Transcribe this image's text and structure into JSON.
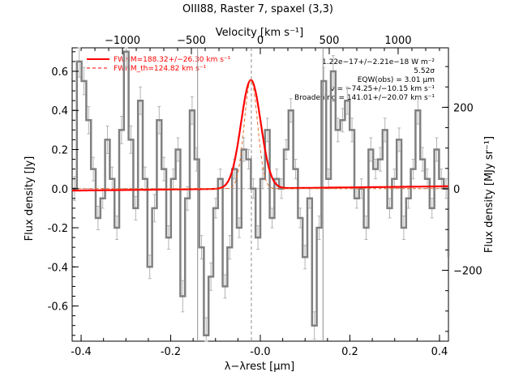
{
  "chart_data": {
    "type": "line",
    "title": "OIII88, Raster 7, spaxel (3,3)",
    "xlabel": "λ−λrest [μm]",
    "ylabel": "Flux density [Jy]",
    "top_xlabel": "Velocity [km s⁻¹]",
    "right_ylabel": "Flux density [MJy sr⁻¹]",
    "xlim": [
      -0.42,
      0.42
    ],
    "ylim": [
      -0.78,
      0.72
    ],
    "velocity_lim": [
      -1365,
      1365
    ],
    "right_lim": [
      -374,
      346
    ],
    "x_ticks": [
      -0.4,
      -0.2,
      0.0,
      0.2,
      0.4
    ],
    "x_tick_labels": [
      "-0.4",
      "-0.2",
      "-0.0",
      "0.2",
      "0.4"
    ],
    "y_ticks": [
      -0.6,
      -0.4,
      -0.2,
      0.0,
      0.2,
      0.4,
      0.6
    ],
    "y_tick_labels": [
      "-0.6",
      "-0.4",
      "-0.2",
      "0.0",
      "0.2",
      "0.4",
      "0.6"
    ],
    "top_ticks": [
      -1000,
      -500,
      0,
      500,
      1000
    ],
    "top_tick_labels": [
      "−1000",
      "−500",
      "0",
      "500",
      "1000"
    ],
    "right_ticks": [
      -200,
      0,
      200
    ],
    "right_tick_labels": [
      "−200",
      "0",
      "200"
    ],
    "vlines_solid": [
      -0.14,
      0.14
    ],
    "vline_dashed": -0.02,
    "legend": [
      {
        "label": "FWHM=188.32+/−26.30 km s⁻¹",
        "style": "solid",
        "color": "#ff0000"
      },
      {
        "label": "FWHM_th=124.82 km s⁻¹",
        "style": "dashed",
        "color": "#ff0000"
      }
    ],
    "annotations": [
      "1.22e−17+/−2.21e−18 W m⁻²",
      "5.52σ",
      "EQW(obs) = 3.01 μm",
      "v = −74.25+/−10.15 km s⁻¹",
      "Broadening = 141.01+/−20.07 km s⁻¹"
    ],
    "fit": {
      "center": -0.021,
      "sigma": 0.022,
      "amplitude": 0.555,
      "baseline_left": -0.01,
      "baseline_right": 0.012
    },
    "fit_th": {
      "center": -0.021,
      "sigma": 0.0148,
      "amplitude": 0.555
    },
    "spectrum": {
      "x0": -0.42,
      "step": 0.0105,
      "color": "#808080",
      "errors_color": "#b4b4b4",
      "y": [
        0.0,
        0.65,
        0.55,
        0.35,
        0.1,
        -0.15,
        -0.05,
        0.25,
        0.05,
        -0.2,
        0.3,
        0.7,
        0.25,
        -0.1,
        0.45,
        0.05,
        -0.4,
        -0.1,
        0.35,
        0.1,
        -0.25,
        0.05,
        0.2,
        -0.55,
        -0.05,
        0.4,
        0.15,
        -0.3,
        -0.75,
        -0.45,
        -0.1,
        0.05,
        -0.5,
        -0.3,
        0.1,
        -0.2,
        0.2,
        0.15,
        0.0,
        -0.25,
        0.05,
        0.3,
        -0.15,
        0.05,
        0.0,
        0.2,
        0.4,
        0.1,
        -0.15,
        -0.35,
        -0.05,
        -0.7,
        -0.2,
        0.55,
        0.05,
        0.6,
        0.3,
        0.35,
        0.45,
        0.3,
        -0.05,
        0.0,
        -0.2,
        0.2,
        0.1,
        0.15,
        0.3,
        -0.1,
        0.05,
        0.25,
        -0.2,
        -0.05,
        0.1,
        0.4,
        0.15,
        0.05,
        -0.1,
        0.2,
        0.05,
        0.0,
        -0.35
      ],
      "errors": [
        0.06,
        0.08,
        0.07,
        0.07,
        0.06,
        0.06,
        0.05,
        0.07,
        0.06,
        0.06,
        0.07,
        0.08,
        0.07,
        0.06,
        0.07,
        0.06,
        0.06,
        0.07,
        0.07,
        0.06,
        0.06,
        0.05,
        0.06,
        0.08,
        0.06,
        0.07,
        0.06,
        0.06,
        0.09,
        0.07,
        0.05,
        0.05,
        0.06,
        0.06,
        0.05,
        0.05,
        0.06,
        0.05,
        0.05,
        0.06,
        0.05,
        0.06,
        0.05,
        0.05,
        0.05,
        0.05,
        0.06,
        0.05,
        0.05,
        0.06,
        0.05,
        0.07,
        0.06,
        0.07,
        0.05,
        0.08,
        0.06,
        0.06,
        0.07,
        0.06,
        0.05,
        0.05,
        0.06,
        0.06,
        0.05,
        0.06,
        0.06,
        0.05,
        0.05,
        0.06,
        0.06,
        0.05,
        0.05,
        0.07,
        0.06,
        0.05,
        0.05,
        0.06,
        0.05,
        0.05,
        0.07
      ]
    }
  }
}
